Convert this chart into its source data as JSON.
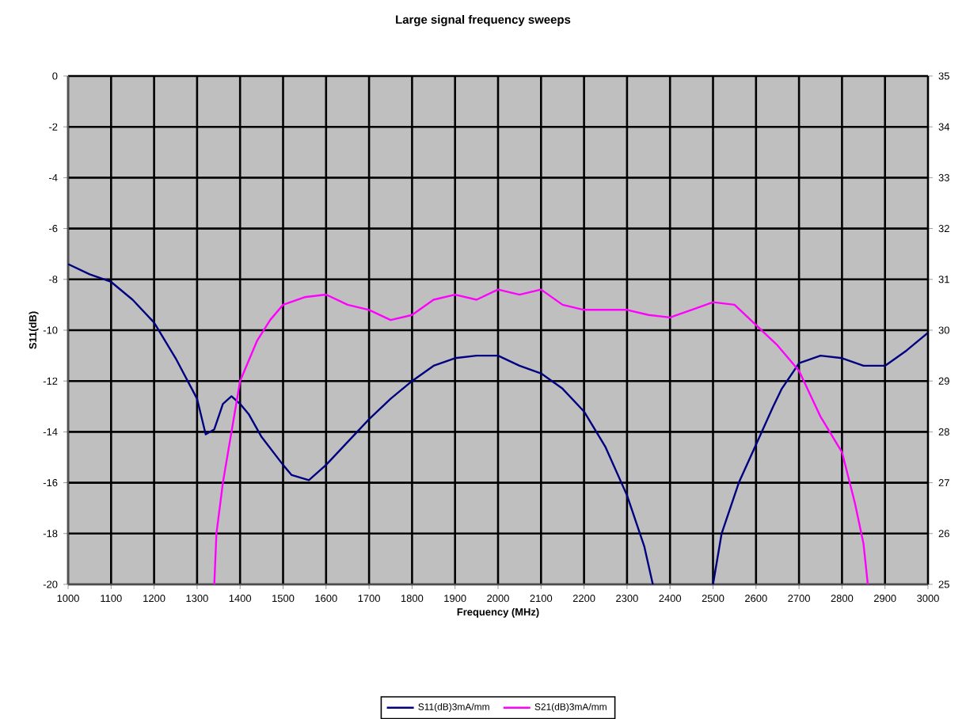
{
  "chart_data": {
    "type": "line",
    "title": "Large signal frequency sweeps",
    "xlabel": "Frequency (MHz)",
    "ylabel": "S11(dB)",
    "xlim": [
      1000,
      3000
    ],
    "xticks": [
      1000,
      1100,
      1200,
      1300,
      1400,
      1500,
      1600,
      1700,
      1800,
      1900,
      2000,
      2100,
      2200,
      2300,
      2400,
      2500,
      2600,
      2700,
      2800,
      2900,
      3000
    ],
    "ylim": [
      -20,
      0
    ],
    "yticks": [
      -20,
      -18,
      -16,
      -14,
      -12,
      -10,
      -8,
      -6,
      -4,
      -2,
      0
    ],
    "y2lim": [
      25,
      35
    ],
    "y2ticks": [
      25,
      26,
      27,
      28,
      29,
      30,
      31,
      32,
      33,
      34,
      35
    ],
    "grid": true,
    "legend": "bottom",
    "marker": "none",
    "line_style": "solid",
    "series": [
      {
        "name": "S11(dB)3mA/mm",
        "color": "#000080",
        "axis": "y",
        "x": [
          1000,
          1050,
          1100,
          1150,
          1200,
          1250,
          1300,
          1320,
          1340,
          1360,
          1380,
          1400,
          1420,
          1450,
          1500,
          1520,
          1560,
          1600,
          1650,
          1700,
          1750,
          1800,
          1850,
          1900,
          1950,
          2000,
          2050,
          2100,
          2150,
          2200,
          2250,
          2300,
          2340,
          2360,
          2430,
          2500,
          2520,
          2560,
          2600,
          2640,
          2660,
          2700,
          2750,
          2800,
          2850,
          2900,
          2950,
          3000
        ],
        "values": [
          -7.4,
          -7.8,
          -8.1,
          -8.8,
          -9.7,
          -11.1,
          -12.7,
          -14.1,
          -13.9,
          -12.9,
          -12.6,
          -12.9,
          -13.3,
          -14.2,
          -15.3,
          -15.7,
          -15.9,
          -15.3,
          -14.4,
          -13.5,
          -12.7,
          -12.0,
          -11.4,
          -11.1,
          -11.0,
          -11.0,
          -11.4,
          -11.7,
          -12.3,
          -13.2,
          -14.6,
          -16.5,
          -18.5,
          -20,
          null,
          -20,
          -18,
          -16,
          -14.5,
          -13,
          -12.3,
          -11.3,
          -11.0,
          -11.1,
          -11.4,
          -11.4,
          -10.8,
          -10.1
        ]
      },
      {
        "name": "S21(dB)3mA/mm",
        "color": "#ff00ff",
        "axis": "y2",
        "x": [
          1340,
          1345,
          1360,
          1380,
          1400,
          1440,
          1470,
          1500,
          1550,
          1600,
          1650,
          1700,
          1750,
          1800,
          1850,
          1900,
          1950,
          2000,
          2050,
          2100,
          2150,
          2200,
          2250,
          2300,
          2350,
          2400,
          2450,
          2500,
          2550,
          2600,
          2650,
          2700,
          2750,
          2800,
          2830,
          2850,
          2860
        ],
        "values": [
          25,
          26,
          27,
          28,
          29,
          29.8,
          30.2,
          30.5,
          30.65,
          30.7,
          30.5,
          30.4,
          30.2,
          30.3,
          30.6,
          30.7,
          30.6,
          30.8,
          30.7,
          30.8,
          30.5,
          30.4,
          30.4,
          30.4,
          30.3,
          30.25,
          30.4,
          30.55,
          30.5,
          30.1,
          29.7,
          29.2,
          28.3,
          27.6,
          26.6,
          25.8,
          25
        ]
      }
    ]
  }
}
